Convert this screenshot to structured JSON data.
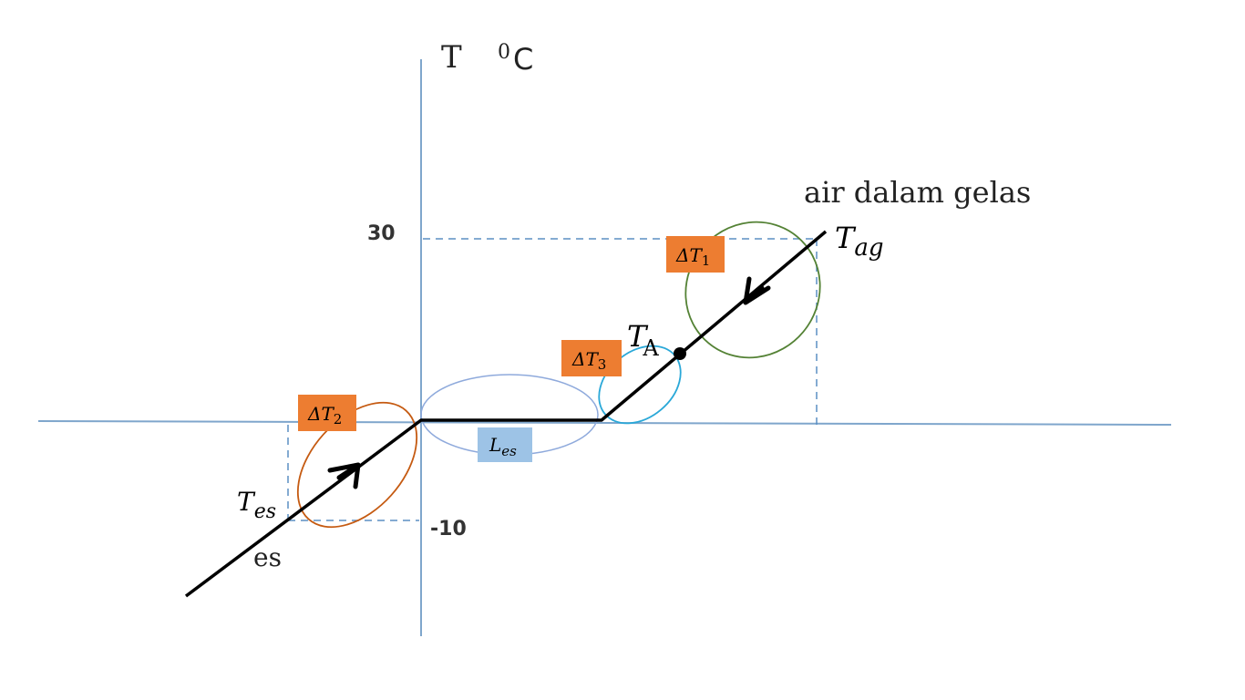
{
  "axis": {
    "y_title": "T",
    "y_unit_sup": "0",
    "y_unit": "C",
    "tick_top": "30",
    "tick_bottom": "-10"
  },
  "labels": {
    "water": "air dalam gelas",
    "ice": "es",
    "t_ag_main": "T",
    "t_ag_sub": "ag",
    "t_es_main": "T",
    "t_es_sub": "es",
    "t_a_main": "T",
    "t_a_sub": "A",
    "l_es_main": "L",
    "l_es_sub": "es"
  },
  "boxes": {
    "dt1_main": "ΔT",
    "dt1_sub": "1",
    "dt2_main": "ΔT",
    "dt2_sub": "2",
    "dt3_main": "ΔT",
    "dt3_sub": "3"
  },
  "colors": {
    "axis": "#7fa6cc",
    "dashed": "#5b8fc4",
    "line": "#000000",
    "box_orange": "#ed7d31",
    "box_blue": "#9dc3e6",
    "ellipse_green": "#548235",
    "ellipse_orange": "#c55a11",
    "ellipse_cyan": "#2aa8d8",
    "ellipse_blue": "#8faadc"
  }
}
